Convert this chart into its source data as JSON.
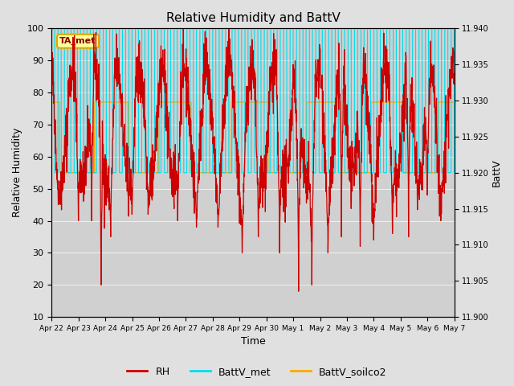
{
  "title": "Relative Humidity and BattV",
  "xlabel": "Time",
  "ylabel_left": "Relative Humidity",
  "ylabel_right": "BattV",
  "annotation": "TA_met",
  "ylim_left": [
    10,
    100
  ],
  "ylim_right": [
    11.9,
    11.94
  ],
  "bg_color": "#e0e0e0",
  "plot_bg_color": "#c8c8c8",
  "rh_color": "#cc0000",
  "battv_met_color": "#00ddee",
  "battv_soilco2_color": "#ffaa00",
  "legend_labels": [
    "RH",
    "BattV_met",
    "BattV_soilco2"
  ],
  "x_tick_labels": [
    "Apr 22",
    "Apr 23",
    "Apr 24",
    "Apr 25",
    "Apr 26",
    "Apr 27",
    "Apr 28",
    "Apr 29",
    "Apr 30",
    "May 1",
    "May 2",
    "May 3",
    "May 4",
    "May 5",
    "May 6",
    "May 7"
  ],
  "n_days": 16,
  "battv_met_high": 100,
  "battv_met_low": 55,
  "battv_soilco2_high": 77,
  "battv_soilco2_low": 55,
  "annotation_facecolor": "#ffff99",
  "annotation_edgecolor": "#ddaa00",
  "annotation_textcolor": "#880000"
}
